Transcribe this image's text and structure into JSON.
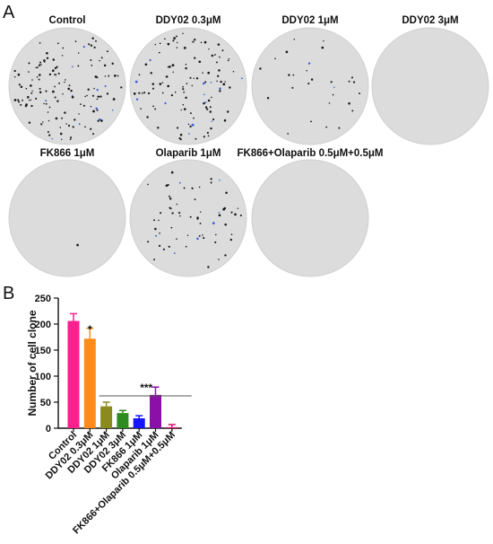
{
  "panel_a": {
    "letter": "A",
    "dishes": [
      {
        "label": "Control",
        "colony_level": 1.0
      },
      {
        "label": "DDY02 0.3μM",
        "colony_level": 0.83
      },
      {
        "label": "DDY02 1μM",
        "colony_level": 0.2
      },
      {
        "label": "DDY02 3μM",
        "colony_level": 0.0
      },
      {
        "label": "FK866 1μM",
        "colony_level": 0.01
      },
      {
        "label": "Olaparib 1μM",
        "colony_level": 0.45
      },
      {
        "label": "FK866+Olaparib 0.5μM+0.5μM",
        "colony_level": 0.0
      }
    ],
    "dish_color": "#dcdcdc",
    "colony_color": "#1a1a1a"
  },
  "panel_b": {
    "letter": "B"
  },
  "chart_data": {
    "type": "bar",
    "ylabel": "Number of cell clone",
    "ylim": [
      0,
      250
    ],
    "yticks": [
      "0",
      "50",
      "100",
      "150",
      "200",
      "250"
    ],
    "categories": [
      "Control",
      "DDY02 0.3μM",
      "DDY02 1μM",
      "DDY02 3μM",
      "FK866 1μM",
      "Olaparib 1μM",
      "FK866+Olaparib 0.5μM+0.5μM"
    ],
    "values": [
      206,
      172,
      42,
      29,
      19,
      64,
      2
    ],
    "errors": [
      14,
      20,
      8,
      5,
      5,
      15,
      5
    ],
    "colors": [
      "#ff1f8e",
      "#ff8c1a",
      "#8a8a1e",
      "#2e8b1f",
      "#1515ff",
      "#8a10a8",
      "#e01070"
    ],
    "grid": false,
    "annotations": [
      {
        "text": "*",
        "over_category": "DDY02 0.3μM"
      },
      {
        "text": "***",
        "line_from": "DDY02 1μM",
        "line_to": "FK866+Olaparib 0.5μM+0.5μM"
      }
    ]
  }
}
